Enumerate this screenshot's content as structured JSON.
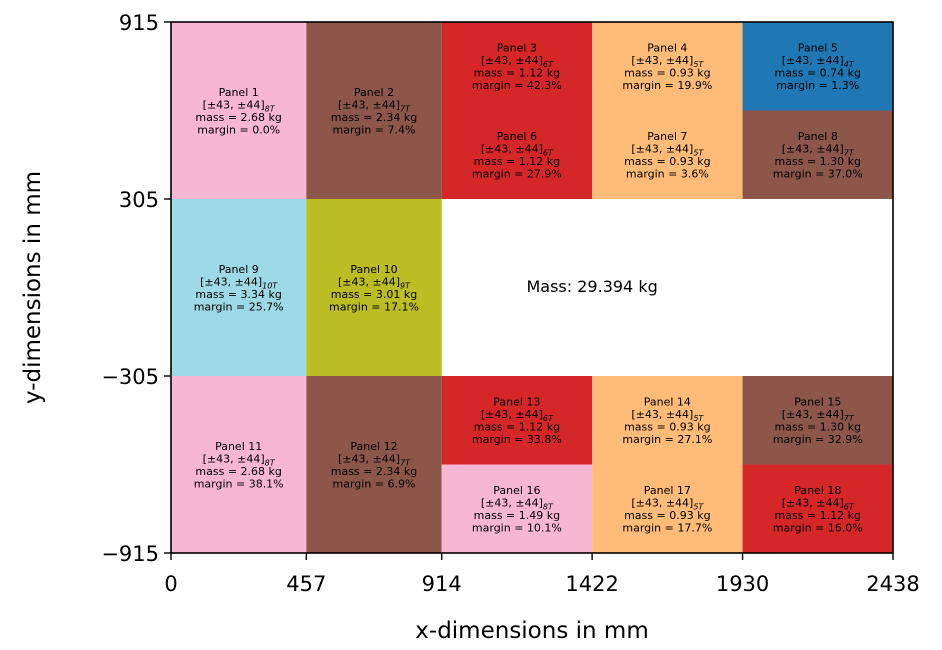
{
  "chart_data": {
    "type": "heatmap",
    "xlabel": "x-dimensions in mm",
    "ylabel": "y-dimensions in mm",
    "xlim": [
      0,
      2438
    ],
    "ylim": [
      -915,
      915
    ],
    "x_ticks": [
      0,
      457,
      914,
      1422,
      1930,
      2438
    ],
    "y_ticks": [
      915,
      305,
      -305,
      -915
    ],
    "y_tick_labels": [
      "915",
      "305",
      "−305",
      "−915"
    ],
    "annotation": "Mass: 29.394 kg",
    "annotation_position": [
      1422,
      0
    ],
    "panels": [
      {
        "name": "Panel 1",
        "layup": "[±43, ±44]",
        "sub": "8T",
        "mass": "mass = 2.68 kg",
        "margin": "margin = 0.0%",
        "x": [
          0,
          457
        ],
        "y": [
          305,
          915
        ],
        "color": "#f7b6d2"
      },
      {
        "name": "Panel 2",
        "layup": "[±43, ±44]",
        "sub": "7T",
        "mass": "mass = 2.34 kg",
        "margin": "margin = 7.4%",
        "x": [
          457,
          914
        ],
        "y": [
          305,
          915
        ],
        "color": "#8c564b"
      },
      {
        "name": "Panel 3",
        "layup": "[±43, ±44]",
        "sub": "6T",
        "mass": "mass = 1.12 kg",
        "margin": "margin = 42.3%",
        "x": [
          914,
          1422
        ],
        "y": [
          610,
          915
        ],
        "color": "#d62728"
      },
      {
        "name": "Panel 4",
        "layup": "[±43, ±44]",
        "sub": "5T",
        "mass": "mass = 0.93 kg",
        "margin": "margin = 19.9%",
        "x": [
          1422,
          1930
        ],
        "y": [
          610,
          915
        ],
        "color": "#ffbb78"
      },
      {
        "name": "Panel 5",
        "layup": "[±43, ±44]",
        "sub": "4T",
        "mass": "mass = 0.74 kg",
        "margin": "margin = 1.3%",
        "x": [
          1930,
          2438
        ],
        "y": [
          610,
          915
        ],
        "color": "#1f77b4"
      },
      {
        "name": "Panel 6",
        "layup": "[±43, ±44]",
        "sub": "6T",
        "mass": "mass = 1.12 kg",
        "margin": "margin = 27.9%",
        "x": [
          914,
          1422
        ],
        "y": [
          305,
          610
        ],
        "color": "#d62728"
      },
      {
        "name": "Panel 7",
        "layup": "[±43, ±44]",
        "sub": "5T",
        "mass": "mass = 0.93 kg",
        "margin": "margin = 3.6%",
        "x": [
          1422,
          1930
        ],
        "y": [
          305,
          610
        ],
        "color": "#ffbb78"
      },
      {
        "name": "Panel 8",
        "layup": "[±43, ±44]",
        "sub": "7T",
        "mass": "mass = 1.30 kg",
        "margin": "margin = 37.0%",
        "x": [
          1930,
          2438
        ],
        "y": [
          305,
          610
        ],
        "color": "#8c564b"
      },
      {
        "name": "Panel 9",
        "layup": "[±43, ±44]",
        "sub": "10T",
        "mass": "mass = 3.34 kg",
        "margin": "margin = 25.7%",
        "x": [
          0,
          457
        ],
        "y": [
          -305,
          305
        ],
        "color": "#9edae5"
      },
      {
        "name": "Panel 10",
        "layup": "[±43, ±44]",
        "sub": "9T",
        "mass": "mass = 3.01 kg",
        "margin": "margin = 17.1%",
        "x": [
          457,
          914
        ],
        "y": [
          -305,
          305
        ],
        "color": "#bcbd22"
      },
      {
        "name": "Panel 11",
        "layup": "[±43, ±44]",
        "sub": "8T",
        "mass": "mass = 2.68 kg",
        "margin": "margin = 38.1%",
        "x": [
          0,
          457
        ],
        "y": [
          -915,
          -305
        ],
        "color": "#f7b6d2"
      },
      {
        "name": "Panel 12",
        "layup": "[±43, ±44]",
        "sub": "7T",
        "mass": "mass = 2.34 kg",
        "margin": "margin = 6.9%",
        "x": [
          457,
          914
        ],
        "y": [
          -915,
          -305
        ],
        "color": "#8c564b"
      },
      {
        "name": "Panel 13",
        "layup": "[±43, ±44]",
        "sub": "6T",
        "mass": "mass = 1.12 kg",
        "margin": "margin = 33.8%",
        "x": [
          914,
          1422
        ],
        "y": [
          -610,
          -305
        ],
        "color": "#d62728"
      },
      {
        "name": "Panel 14",
        "layup": "[±43, ±44]",
        "sub": "5T",
        "mass": "mass = 0.93 kg",
        "margin": "margin = 27.1%",
        "x": [
          1422,
          1930
        ],
        "y": [
          -610,
          -305
        ],
        "color": "#ffbb78"
      },
      {
        "name": "Panel 15",
        "layup": "[±43, ±44]",
        "sub": "7T",
        "mass": "mass = 1.30 kg",
        "margin": "margin = 32.9%",
        "x": [
          1930,
          2438
        ],
        "y": [
          -610,
          -305
        ],
        "color": "#8c564b"
      },
      {
        "name": "Panel 16",
        "layup": "[±43, ±44]",
        "sub": "8T",
        "mass": "mass = 1.49 kg",
        "margin": "margin = 10.1%",
        "x": [
          914,
          1422
        ],
        "y": [
          -915,
          -610
        ],
        "color": "#f7b6d2"
      },
      {
        "name": "Panel 17",
        "layup": "[±43, ±44]",
        "sub": "5T",
        "mass": "mass = 0.93 kg",
        "margin": "margin = 17.7%",
        "x": [
          1422,
          1930
        ],
        "y": [
          -915,
          -610
        ],
        "color": "#ffbb78"
      },
      {
        "name": "Panel 18",
        "layup": "[±43, ±44]",
        "sub": "6T",
        "mass": "mass = 1.12 kg",
        "margin": "margin = 16.0%",
        "x": [
          1930,
          2438
        ],
        "y": [
          -915,
          -610
        ],
        "color": "#d62728"
      }
    ]
  }
}
